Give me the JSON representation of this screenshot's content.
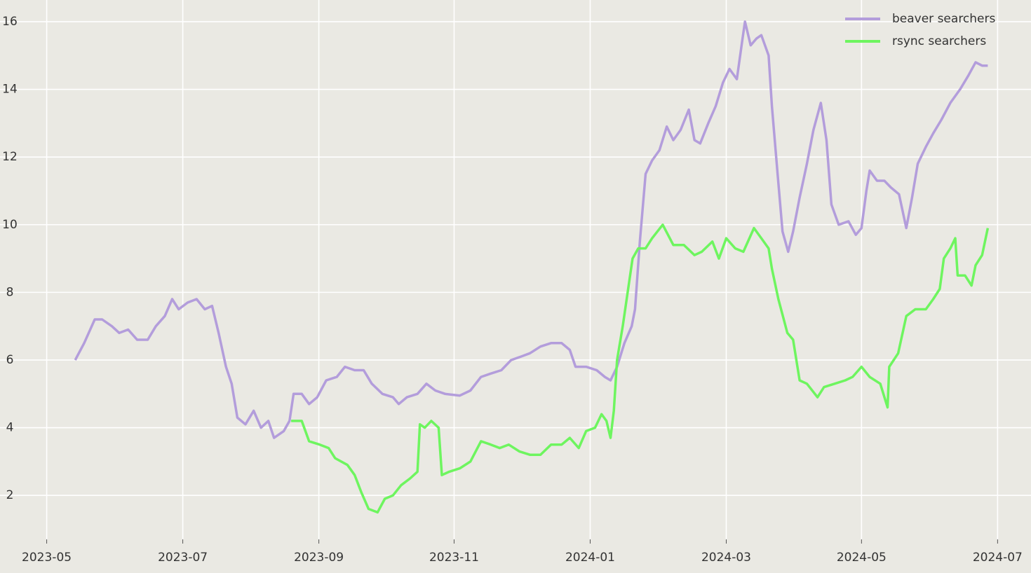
{
  "chart_data": {
    "type": "line",
    "legend": "upper right",
    "grid": true,
    "xlim": [
      2023.2757,
      2024.541
    ],
    "ylim": [
      0.7,
      16.64
    ],
    "xticks": [
      {
        "value": 2023.333,
        "label": "2023-05"
      },
      {
        "value": 2023.5,
        "label": "2023-07"
      },
      {
        "value": 2023.667,
        "label": "2023-09"
      },
      {
        "value": 2023.833,
        "label": "2023-11"
      },
      {
        "value": 2024.0,
        "label": "2024-01"
      },
      {
        "value": 2024.167,
        "label": "2024-03"
      },
      {
        "value": 2024.333,
        "label": "2024-05"
      },
      {
        "value": 2024.5,
        "label": "2024-07"
      }
    ],
    "yticks": [
      2,
      4,
      6,
      8,
      10,
      12,
      14,
      16
    ],
    "series": [
      {
        "name": "beaver searchers",
        "color": "#b39ddb",
        "x": [
          2023.368,
          2023.379,
          2023.392,
          2023.401,
          2023.413,
          2023.422,
          2023.433,
          2023.444,
          2023.457,
          2023.467,
          2023.478,
          2023.487,
          2023.495,
          2023.506,
          2023.517,
          2023.527,
          2023.536,
          2023.544,
          2023.553,
          2023.56,
          2023.567,
          2023.577,
          2023.587,
          2023.596,
          2023.605,
          2023.612,
          2023.624,
          2023.631,
          2023.636,
          2023.646,
          2023.655,
          2023.665,
          2023.676,
          2023.689,
          2023.699,
          2023.711,
          2023.722,
          2023.732,
          2023.745,
          2023.758,
          2023.765,
          2023.775,
          2023.788,
          2023.799,
          2023.81,
          2023.822,
          2023.84,
          2023.853,
          2023.866,
          2023.878,
          2023.891,
          2023.903,
          2023.915,
          2023.926,
          2023.939,
          2023.952,
          2023.965,
          2023.975,
          2023.982,
          2023.995,
          2024.008,
          2024.018,
          2024.025,
          2024.033,
          2024.042,
          2024.051,
          2024.055,
          2024.061,
          2024.068,
          2024.076,
          2024.085,
          2024.094,
          2024.102,
          2024.111,
          2024.121,
          2024.128,
          2024.135,
          2024.145,
          2024.154,
          2024.163,
          2024.171,
          2024.18,
          2024.187,
          2024.19,
          2024.197,
          2024.204,
          2024.21,
          2024.219,
          2024.223,
          2024.23,
          2024.236,
          2024.243,
          2024.249,
          2024.257,
          2024.266,
          2024.274,
          2024.283,
          2024.29,
          2024.296,
          2024.305,
          2024.317,
          2024.326,
          2024.333,
          2024.339,
          2024.343,
          2024.352,
          2024.361,
          2024.369,
          2024.379,
          2024.388,
          2024.395,
          2024.402,
          2024.412,
          2024.421,
          2024.431,
          2024.442,
          2024.454,
          2024.464,
          2024.473,
          2024.481,
          2024.488
        ],
        "values": [
          6.0,
          6.5,
          7.2,
          7.2,
          7.0,
          6.8,
          6.9,
          6.6,
          6.6,
          7.0,
          7.3,
          7.8,
          7.5,
          7.7,
          7.8,
          7.5,
          7.6,
          6.8,
          5.8,
          5.3,
          4.3,
          4.1,
          4.5,
          4.0,
          4.2,
          3.7,
          3.9,
          4.2,
          5.0,
          5.0,
          4.7,
          4.9,
          5.4,
          5.5,
          5.8,
          5.7,
          5.7,
          5.3,
          5.0,
          4.9,
          4.7,
          4.9,
          5.0,
          5.3,
          5.1,
          5.0,
          4.95,
          5.1,
          5.5,
          5.6,
          5.7,
          6.0,
          6.1,
          6.2,
          6.4,
          6.5,
          6.5,
          6.3,
          5.8,
          5.8,
          5.7,
          5.5,
          5.4,
          5.8,
          6.5,
          7.0,
          7.5,
          9.5,
          11.5,
          11.9,
          12.2,
          12.9,
          12.5,
          12.8,
          13.4,
          12.5,
          12.4,
          13.0,
          13.5,
          14.2,
          14.6,
          14.3,
          15.5,
          16.0,
          15.3,
          15.5,
          15.6,
          15.0,
          13.5,
          11.5,
          9.8,
          9.2,
          9.8,
          10.8,
          11.8,
          12.8,
          13.6,
          12.5,
          10.6,
          10.0,
          10.1,
          9.7,
          9.9,
          11.0,
          11.6,
          11.3,
          11.3,
          11.1,
          10.9,
          9.9,
          10.8,
          11.8,
          12.3,
          12.7,
          13.1,
          13.6,
          14.0,
          14.4,
          14.8,
          14.7,
          14.7
        ]
      },
      {
        "name": "rsync searchers",
        "color": "#6ef55f",
        "x": [
          2023.633,
          2023.646,
          2023.655,
          2023.668,
          2023.679,
          2023.687,
          2023.702,
          2023.711,
          2023.719,
          2023.728,
          2023.739,
          2023.748,
          2023.758,
          2023.768,
          2023.779,
          2023.788,
          2023.791,
          2023.797,
          2023.805,
          2023.814,
          2023.818,
          2023.827,
          2023.84,
          2023.853,
          2023.866,
          2023.878,
          2023.889,
          2023.9,
          2023.913,
          2023.926,
          2023.939,
          2023.952,
          2023.965,
          2023.975,
          2023.986,
          2023.995,
          2024.006,
          2024.014,
          2024.02,
          2024.025,
          2024.029,
          2024.033,
          2024.04,
          2024.046,
          2024.052,
          2024.059,
          2024.068,
          2024.076,
          2024.089,
          2024.102,
          2024.115,
          2024.128,
          2024.137,
          2024.15,
          2024.158,
          2024.167,
          2024.178,
          2024.188,
          2024.201,
          2024.21,
          2024.219,
          2024.223,
          2024.231,
          2024.242,
          2024.249,
          2024.257,
          2024.266,
          2024.279,
          2024.287,
          2024.3,
          2024.313,
          2024.322,
          2024.333,
          2024.343,
          2024.356,
          2024.365,
          2024.367,
          2024.378,
          2024.388,
          2024.399,
          2024.412,
          2024.421,
          2024.429,
          2024.434,
          2024.442,
          2024.448,
          2024.451,
          2024.46,
          2024.468,
          2024.473,
          2024.481,
          2024.488
        ],
        "values": [
          4.2,
          4.2,
          3.6,
          3.5,
          3.4,
          3.1,
          2.9,
          2.6,
          2.1,
          1.6,
          1.5,
          1.9,
          2.0,
          2.3,
          2.5,
          2.7,
          4.1,
          4.0,
          4.2,
          4.0,
          2.6,
          2.7,
          2.8,
          3.0,
          3.6,
          3.5,
          3.4,
          3.5,
          3.3,
          3.2,
          3.2,
          3.5,
          3.5,
          3.7,
          3.4,
          3.9,
          4.0,
          4.4,
          4.2,
          3.7,
          4.5,
          6.0,
          7.0,
          8.0,
          9.0,
          9.3,
          9.3,
          9.6,
          10.0,
          9.4,
          9.4,
          9.1,
          9.2,
          9.5,
          9.0,
          9.6,
          9.3,
          9.2,
          9.9,
          9.6,
          9.3,
          8.7,
          7.8,
          6.8,
          6.6,
          5.4,
          5.3,
          4.9,
          5.2,
          5.3,
          5.4,
          5.5,
          5.8,
          5.5,
          5.3,
          4.6,
          5.8,
          6.2,
          7.3,
          7.5,
          7.5,
          7.8,
          8.1,
          9.0,
          9.3,
          9.6,
          8.5,
          8.5,
          8.2,
          8.8,
          9.1,
          9.9
        ]
      }
    ]
  }
}
